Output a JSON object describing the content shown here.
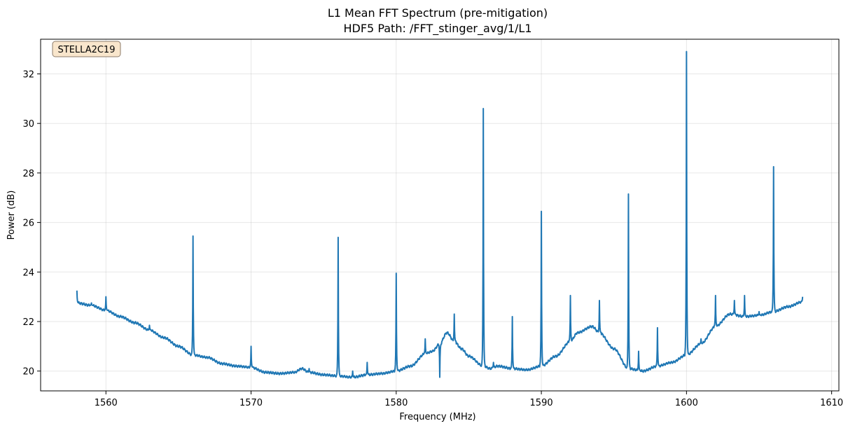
{
  "chart_data": {
    "type": "line",
    "title": "L1 Mean FFT Spectrum (pre-mitigation)",
    "subtitle": "HDF5 Path: /FFT_stinger_avg/1/L1",
    "xlabel": "Frequency (MHz)",
    "ylabel": "Power (dB)",
    "annotation": "STELLA2C19",
    "xlim": [
      1555.5,
      1610.5
    ],
    "ylim": [
      19.2,
      33.4
    ],
    "xticks": [
      1560,
      1570,
      1580,
      1590,
      1600,
      1610
    ],
    "yticks": [
      20,
      22,
      24,
      26,
      28,
      30,
      32
    ],
    "grid": true,
    "legend": "none",
    "colors": {
      "line": "#1f77b4",
      "annotation_fill": "#f9e6cc",
      "annotation_edge": "#8c7b6a"
    },
    "baseline": [
      [
        1558.0,
        22.75
      ],
      [
        1559.0,
        22.65
      ],
      [
        1560.0,
        22.45
      ],
      [
        1561.0,
        22.2
      ],
      [
        1562.0,
        21.95
      ],
      [
        1563.0,
        21.65
      ],
      [
        1564.0,
        21.35
      ],
      [
        1565.0,
        21.0
      ],
      [
        1566.0,
        20.65
      ],
      [
        1567.0,
        20.55
      ],
      [
        1568.0,
        20.3
      ],
      [
        1569.0,
        20.2
      ],
      [
        1570.0,
        20.15
      ],
      [
        1571.0,
        19.95
      ],
      [
        1572.0,
        19.9
      ],
      [
        1573.0,
        19.95
      ],
      [
        1573.5,
        20.1
      ],
      [
        1574.0,
        19.95
      ],
      [
        1575.0,
        19.85
      ],
      [
        1576.0,
        19.8
      ],
      [
        1577.0,
        19.75
      ],
      [
        1578.0,
        19.85
      ],
      [
        1579.0,
        19.9
      ],
      [
        1580.0,
        20.0
      ],
      [
        1581.0,
        20.2
      ],
      [
        1582.0,
        20.7
      ],
      [
        1582.5,
        20.8
      ],
      [
        1583.0,
        21.1
      ],
      [
        1583.5,
        21.55
      ],
      [
        1584.0,
        21.2
      ],
      [
        1584.5,
        20.9
      ],
      [
        1585.0,
        20.6
      ],
      [
        1586.0,
        20.2
      ],
      [
        1586.5,
        20.1
      ],
      [
        1587.0,
        20.2
      ],
      [
        1588.0,
        20.1
      ],
      [
        1589.0,
        20.05
      ],
      [
        1590.0,
        20.2
      ],
      [
        1591.0,
        20.6
      ],
      [
        1592.0,
        21.2
      ],
      [
        1592.5,
        21.55
      ],
      [
        1593.5,
        21.8
      ],
      [
        1594.0,
        21.55
      ],
      [
        1595.0,
        20.9
      ],
      [
        1596.0,
        20.1
      ],
      [
        1597.0,
        20.0
      ],
      [
        1598.0,
        20.2
      ],
      [
        1599.0,
        20.35
      ],
      [
        1600.0,
        20.65
      ],
      [
        1601.0,
        21.1
      ],
      [
        1602.0,
        21.8
      ],
      [
        1603.0,
        22.3
      ],
      [
        1604.0,
        22.2
      ],
      [
        1605.0,
        22.25
      ],
      [
        1606.0,
        22.4
      ],
      [
        1607.0,
        22.6
      ],
      [
        1608.0,
        22.8
      ]
    ],
    "spikes": [
      [
        1558.0,
        23.25
      ],
      [
        1559.0,
        22.75
      ],
      [
        1560.0,
        23.0
      ],
      [
        1563.0,
        21.85
      ],
      [
        1566.0,
        25.45
      ],
      [
        1570.0,
        21.0
      ],
      [
        1574.0,
        20.1
      ],
      [
        1576.0,
        25.4
      ],
      [
        1577.0,
        20.0
      ],
      [
        1578.0,
        20.35
      ],
      [
        1580.0,
        23.95
      ],
      [
        1582.0,
        21.3
      ],
      [
        1583.0,
        19.75
      ],
      [
        1584.0,
        22.3
      ],
      [
        1586.0,
        30.6
      ],
      [
        1586.7,
        20.35
      ],
      [
        1588.0,
        22.2
      ],
      [
        1590.0,
        26.45
      ],
      [
        1592.0,
        23.05
      ],
      [
        1594.0,
        22.85
      ],
      [
        1596.0,
        27.15
      ],
      [
        1596.7,
        20.8
      ],
      [
        1598.0,
        21.75
      ],
      [
        1600.0,
        32.9
      ],
      [
        1601.0,
        21.3
      ],
      [
        1602.0,
        23.05
      ],
      [
        1603.3,
        22.85
      ],
      [
        1604.0,
        23.05
      ],
      [
        1605.0,
        22.4
      ],
      [
        1606.0,
        28.25
      ],
      [
        1608.0,
        23.0
      ]
    ]
  }
}
